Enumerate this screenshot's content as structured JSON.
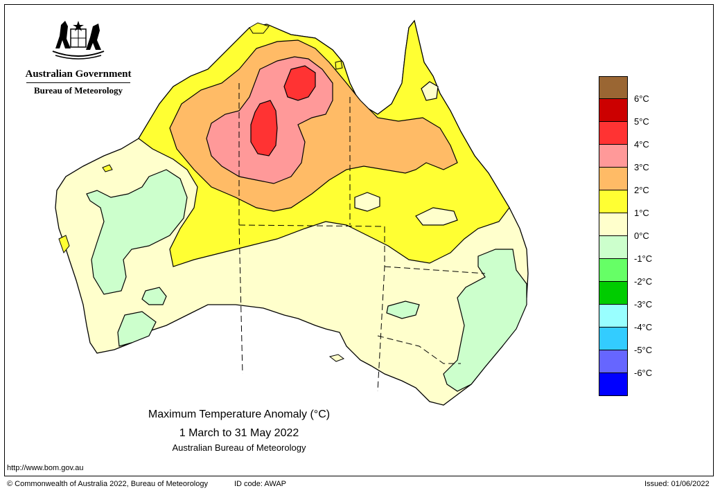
{
  "header": {
    "government": "Australian Government",
    "agency": "Bureau of Meteorology",
    "emblem": "coat-of-arms-icon"
  },
  "map": {
    "title": "Maximum Temperature Anomaly (°C)",
    "period": "1 March to 31 May 2022",
    "credit": "Australian Bureau of Meteorology",
    "projection_note": "Australia",
    "dominant_anomaly_north": "+2 to +5 °C",
    "dominant_anomaly_south": "0 to +1 °C",
    "cool_regions_anomaly": "-1 to 0 °C"
  },
  "legend": {
    "colors": [
      "#9a6633",
      "#cc0000",
      "#ff3333",
      "#ff9999",
      "#ffbb66",
      "#ffff33",
      "#ffffcc",
      "#ccffcc",
      "#66ff66",
      "#00cc00",
      "#99ffff",
      "#33ccff",
      "#6666ff",
      "#0000ff"
    ],
    "labels": [
      "6°C",
      "5°C",
      "4°C",
      "3°C",
      "2°C",
      "1°C",
      "0°C",
      "-1°C",
      "-2°C",
      "-3°C",
      "-4°C",
      "-5°C",
      "-6°C"
    ]
  },
  "footer": {
    "url": "http://www.bom.gov.au",
    "copyright": "© Commonwealth of Australia 2022, Bureau of Meteorology",
    "id_code": "ID code: AWAP",
    "issued": "Issued: 01/06/2022"
  }
}
